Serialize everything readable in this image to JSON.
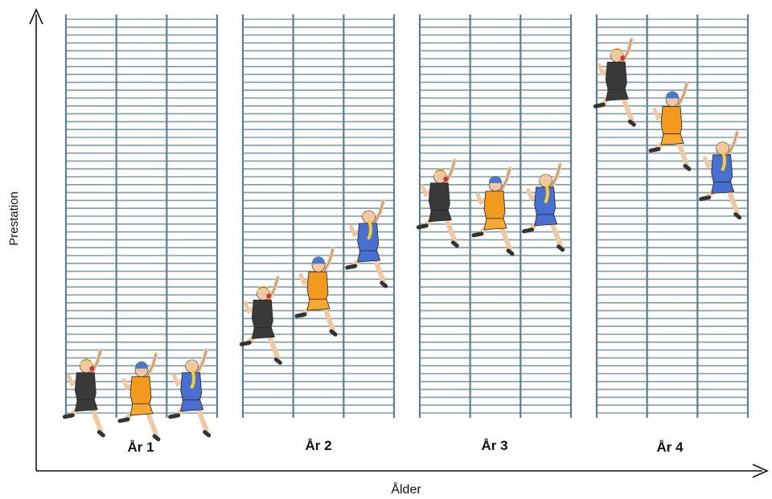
{
  "axes": {
    "y_label": "Prestation",
    "x_label": "Ålder"
  },
  "colors": {
    "ladder": "#5c7f8e",
    "rung": "#7f9dab",
    "skin": "#f1c9a0",
    "outline": "#222222",
    "athlete_black": "#3a3a3a",
    "athlete_orange": "#f39a1e",
    "athlete_blue": "#4a6fd2",
    "hair_yellow": "#f3d030",
    "cap_blue": "#4a78c8",
    "cap_red": "#d8302a"
  },
  "panels": [
    {
      "label": "År 1",
      "climbers": [
        {
          "name": "svart",
          "level": 0.12
        },
        {
          "name": "orange",
          "level": 0.11
        },
        {
          "name": "blå",
          "level": 0.12
        }
      ]
    },
    {
      "label": "År 2",
      "climbers": [
        {
          "name": "svart",
          "level": 0.3
        },
        {
          "name": "orange",
          "level": 0.37
        },
        {
          "name": "blå",
          "level": 0.49
        }
      ]
    },
    {
      "label": "År 3",
      "climbers": [
        {
          "name": "svart",
          "level": 0.59
        },
        {
          "name": "orange",
          "level": 0.57
        },
        {
          "name": "blå",
          "level": 0.58
        }
      ]
    },
    {
      "label": "År 4",
      "climbers": [
        {
          "name": "svart",
          "level": 0.89
        },
        {
          "name": "orange",
          "level": 0.78
        },
        {
          "name": "blå",
          "level": 0.66
        }
      ]
    }
  ]
}
